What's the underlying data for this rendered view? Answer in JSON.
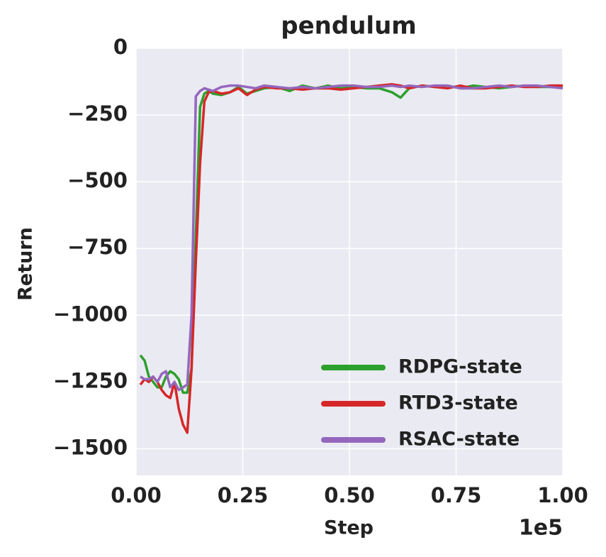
{
  "chart_data": {
    "type": "line",
    "title": "pendulum",
    "x_label": "Step",
    "y_label": "Return",
    "x_offset_label": "1e5",
    "x": [
      0.01,
      0.02,
      0.03,
      0.04,
      0.05,
      0.06,
      0.07,
      0.08,
      0.09,
      0.1,
      0.11,
      0.12,
      0.13,
      0.14,
      0.15,
      0.16,
      0.17,
      0.18,
      0.2,
      0.22,
      0.24,
      0.26,
      0.28,
      0.3,
      0.33,
      0.36,
      0.39,
      0.42,
      0.45,
      0.48,
      0.51,
      0.54,
      0.57,
      0.6,
      0.62,
      0.64,
      0.67,
      0.7,
      0.73,
      0.76,
      0.79,
      0.82,
      0.85,
      0.88,
      0.91,
      0.94,
      0.97,
      1.0
    ],
    "series": [
      {
        "name": "RDPG-state",
        "color": "#2ca02c",
        "values": [
          -1150,
          -1170,
          -1230,
          -1250,
          -1270,
          -1270,
          -1230,
          -1210,
          -1220,
          -1240,
          -1290,
          -1290,
          -1200,
          -700,
          -220,
          -170,
          -160,
          -170,
          -175,
          -165,
          -145,
          -170,
          -160,
          -150,
          -145,
          -160,
          -140,
          -150,
          -140,
          -150,
          -145,
          -150,
          -150,
          -165,
          -185,
          -150,
          -140,
          -145,
          -140,
          -150,
          -140,
          -145,
          -150,
          -145,
          -140,
          -145,
          -145,
          -140
        ]
      },
      {
        "name": "RTD3-state",
        "color": "#d62728",
        "values": [
          -1260,
          -1240,
          -1250,
          -1230,
          -1250,
          -1280,
          -1300,
          -1310,
          -1250,
          -1350,
          -1410,
          -1440,
          -1200,
          -800,
          -430,
          -200,
          -165,
          -160,
          -170,
          -165,
          -150,
          -175,
          -155,
          -145,
          -150,
          -150,
          -155,
          -150,
          -150,
          -155,
          -150,
          -145,
          -140,
          -135,
          -140,
          -150,
          -140,
          -145,
          -150,
          -140,
          -150,
          -150,
          -145,
          -140,
          -145,
          -145,
          -140,
          -140
        ]
      },
      {
        "name": "RSAC-state",
        "color": "#9467bd",
        "values": [
          -1230,
          -1240,
          -1240,
          -1230,
          -1250,
          -1220,
          -1210,
          -1270,
          -1250,
          -1280,
          -1270,
          -1260,
          -1000,
          -180,
          -160,
          -150,
          -155,
          -160,
          -145,
          -140,
          -140,
          -145,
          -150,
          -140,
          -145,
          -150,
          -145,
          -150,
          -145,
          -140,
          -140,
          -145,
          -145,
          -140,
          -145,
          -140,
          -145,
          -140,
          -140,
          -150,
          -150,
          -145,
          -140,
          -145,
          -140,
          -140,
          -145,
          -150
        ]
      }
    ],
    "xlim": [
      0,
      1
    ],
    "ylim": [
      -1600,
      0
    ],
    "xticks": [
      {
        "value": 0,
        "label": "0.00"
      },
      0.25,
      {
        "value": 0.5,
        "label": "0.50"
      },
      0.75,
      {
        "value": 1,
        "label": "1.00"
      }
    ],
    "yticks": [
      0,
      {
        "value": -250,
        "label": "−250"
      },
      {
        "value": -500,
        "label": "−500"
      },
      {
        "value": -750,
        "label": "−750"
      },
      {
        "value": -1000,
        "label": "−1000"
      },
      {
        "value": -1250,
        "label": "−1250"
      },
      {
        "value": -1500,
        "label": "−1500"
      }
    ],
    "grid": true,
    "legend": "lower right"
  }
}
